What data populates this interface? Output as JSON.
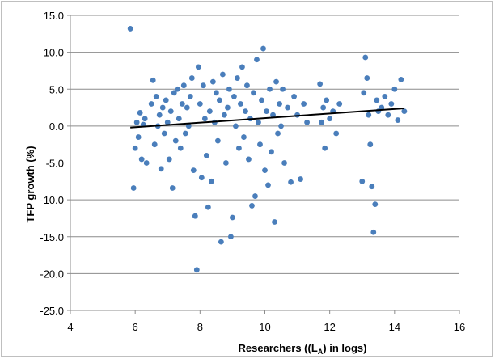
{
  "chart_data": {
    "type": "scatter",
    "xlabel_main": "Researchers ((L",
    "xlabel_sub": "A",
    "xlabel_tail": ") in logs)",
    "ylabel": "TFP growth (%)",
    "xlim": [
      4,
      16
    ],
    "ylim": [
      -25,
      15
    ],
    "x_ticks": [
      "4",
      "6",
      "8",
      "10",
      "12",
      "14",
      "16"
    ],
    "y_ticks": [
      "15.0",
      "10.0",
      "5.0",
      "0.0",
      "-5.0",
      "-10.0",
      "-15.0",
      "-20.0",
      "-25.0"
    ],
    "horizontal_grid": true,
    "point_color": "#4a7ebb",
    "trend_color": "#000000",
    "trendline": {
      "x": [
        5.85,
        14.3
      ],
      "y": [
        -0.2,
        2.4
      ]
    },
    "points": [
      [
        5.85,
        13.2
      ],
      [
        5.95,
        -8.4
      ],
      [
        6.0,
        -3.0
      ],
      [
        6.05,
        0.5
      ],
      [
        6.1,
        -1.5
      ],
      [
        6.15,
        1.8
      ],
      [
        6.2,
        -4.5
      ],
      [
        6.25,
        0.2
      ],
      [
        6.3,
        1.0
      ],
      [
        6.35,
        -5.0
      ],
      [
        6.5,
        3.0
      ],
      [
        6.55,
        6.2
      ],
      [
        6.6,
        -2.5
      ],
      [
        6.65,
        4.0
      ],
      [
        6.7,
        0.0
      ],
      [
        6.75,
        1.5
      ],
      [
        6.8,
        -5.8
      ],
      [
        6.85,
        2.5
      ],
      [
        6.9,
        -1.0
      ],
      [
        6.95,
        3.5
      ],
      [
        7.0,
        0.5
      ],
      [
        7.05,
        -4.5
      ],
      [
        7.1,
        2.0
      ],
      [
        7.15,
        -8.4
      ],
      [
        7.2,
        4.5
      ],
      [
        7.25,
        -2.0
      ],
      [
        7.3,
        5.0
      ],
      [
        7.35,
        1.0
      ],
      [
        7.4,
        -3.0
      ],
      [
        7.45,
        3.0
      ],
      [
        7.5,
        5.5
      ],
      [
        7.55,
        -1.0
      ],
      [
        7.6,
        2.5
      ],
      [
        7.65,
        0.0
      ],
      [
        7.7,
        4.0
      ],
      [
        7.75,
        6.5
      ],
      [
        7.8,
        -6.0
      ],
      [
        7.85,
        -12.2
      ],
      [
        7.9,
        -19.5
      ],
      [
        7.95,
        8.0
      ],
      [
        8.0,
        3.0
      ],
      [
        8.05,
        -7.0
      ],
      [
        8.1,
        5.5
      ],
      [
        8.15,
        1.0
      ],
      [
        8.2,
        -4.0
      ],
      [
        8.25,
        -11.0
      ],
      [
        8.3,
        2.0
      ],
      [
        8.35,
        -7.5
      ],
      [
        8.4,
        6.0
      ],
      [
        8.45,
        0.5
      ],
      [
        8.5,
        4.5
      ],
      [
        8.55,
        -2.0
      ],
      [
        8.6,
        3.5
      ],
      [
        8.65,
        -15.7
      ],
      [
        8.7,
        7.0
      ],
      [
        8.75,
        1.5
      ],
      [
        8.8,
        -5.0
      ],
      [
        8.85,
        2.5
      ],
      [
        8.9,
        5.0
      ],
      [
        8.95,
        -15.0
      ],
      [
        9.0,
        -12.4
      ],
      [
        9.05,
        4.0
      ],
      [
        9.1,
        0.0
      ],
      [
        9.15,
        6.5
      ],
      [
        9.2,
        -3.0
      ],
      [
        9.25,
        3.0
      ],
      [
        9.3,
        8.0
      ],
      [
        9.35,
        -1.5
      ],
      [
        9.4,
        2.0
      ],
      [
        9.45,
        5.5
      ],
      [
        9.5,
        -4.5
      ],
      [
        9.55,
        1.0
      ],
      [
        9.6,
        -10.8
      ],
      [
        9.65,
        4.5
      ],
      [
        9.7,
        -9.5
      ],
      [
        9.75,
        9.0
      ],
      [
        9.8,
        0.5
      ],
      [
        9.85,
        -2.5
      ],
      [
        9.9,
        3.5
      ],
      [
        9.95,
        10.5
      ],
      [
        10.0,
        -6.0
      ],
      [
        10.05,
        2.0
      ],
      [
        10.1,
        -8.0
      ],
      [
        10.15,
        5.0
      ],
      [
        10.2,
        -3.5
      ],
      [
        10.25,
        1.5
      ],
      [
        10.3,
        -13.0
      ],
      [
        10.35,
        6.0
      ],
      [
        10.4,
        -1.0
      ],
      [
        10.45,
        3.0
      ],
      [
        10.5,
        0.0
      ],
      [
        10.55,
        5.0
      ],
      [
        10.6,
        -5.0
      ],
      [
        10.7,
        2.5
      ],
      [
        10.8,
        -7.6
      ],
      [
        10.9,
        4.0
      ],
      [
        11.0,
        1.5
      ],
      [
        11.1,
        -7.2
      ],
      [
        11.2,
        3.0
      ],
      [
        11.3,
        0.5
      ],
      [
        11.7,
        5.7
      ],
      [
        11.75,
        0.5
      ],
      [
        11.8,
        2.5
      ],
      [
        11.85,
        -3.0
      ],
      [
        11.9,
        3.5
      ],
      [
        12.0,
        1.0
      ],
      [
        12.1,
        2.0
      ],
      [
        12.2,
        -1.0
      ],
      [
        12.3,
        3.0
      ],
      [
        13.0,
        -7.5
      ],
      [
        13.05,
        4.5
      ],
      [
        13.1,
        9.3
      ],
      [
        13.15,
        6.5
      ],
      [
        13.2,
        1.5
      ],
      [
        13.25,
        -2.5
      ],
      [
        13.3,
        -8.2
      ],
      [
        13.35,
        -14.4
      ],
      [
        13.4,
        -10.6
      ],
      [
        13.45,
        3.5
      ],
      [
        13.5,
        2.0
      ],
      [
        13.6,
        2.5
      ],
      [
        13.7,
        4.0
      ],
      [
        13.8,
        1.5
      ],
      [
        13.9,
        3.0
      ],
      [
        14.0,
        5.0
      ],
      [
        14.1,
        0.8
      ],
      [
        14.2,
        6.3
      ],
      [
        14.3,
        2.0
      ]
    ]
  }
}
